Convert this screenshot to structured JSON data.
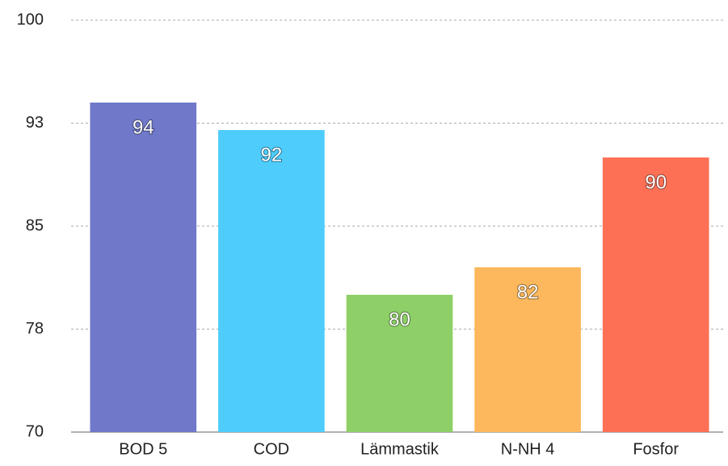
{
  "chart_data": {
    "type": "bar",
    "categories": [
      "BOD 5",
      "COD",
      "Lämmastik",
      "N-NH 4",
      "Fosfor"
    ],
    "values": [
      94,
      92,
      80,
      82,
      90
    ],
    "colors": [
      "#6f78c9",
      "#4ecdfd",
      "#8ecf68",
      "#fdb75c",
      "#fd7055"
    ],
    "ylim": [
      70,
      100
    ],
    "yticks": [
      70,
      {
        "value": 77.5,
        "label": "78"
      },
      85,
      {
        "value": 92.5,
        "label": "93"
      },
      100
    ],
    "grid": true
  }
}
